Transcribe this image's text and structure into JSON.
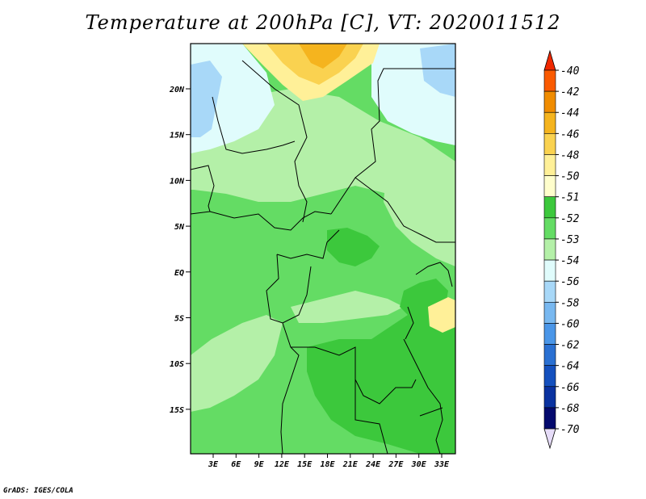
{
  "title": "Temperature at 200hPa [C], VT: 2020011512",
  "credit": "GrADS: IGES/COLA",
  "map": {
    "lat_ticks": [
      "20N",
      "15N",
      "10N",
      "5N",
      "EQ",
      "5S",
      "10S",
      "15S"
    ],
    "lon_ticks": [
      "3E",
      "6E",
      "9E",
      "12E",
      "15E",
      "18E",
      "21E",
      "24E",
      "27E",
      "30E",
      "33E"
    ]
  },
  "colorbar": {
    "labels": [
      "-40",
      "-42",
      "-44",
      "-46",
      "-48",
      "-50",
      "-51",
      "-52",
      "-53",
      "-54",
      "-56",
      "-58",
      "-60",
      "-62",
      "-64",
      "-66",
      "-68",
      "-70"
    ],
    "colors": [
      "#f02800",
      "#fa5a00",
      "#f08c00",
      "#f5b41e",
      "#fad250",
      "#fff098",
      "#fffecc",
      "#3cc83c",
      "#64dc64",
      "#b4f0a8",
      "#e0fcfc",
      "#a8d8f8",
      "#78b8f0",
      "#4a96e8",
      "#2a70d2",
      "#1450be",
      "#0a32a0",
      "#040a6e",
      "#e6dcf8"
    ]
  }
}
